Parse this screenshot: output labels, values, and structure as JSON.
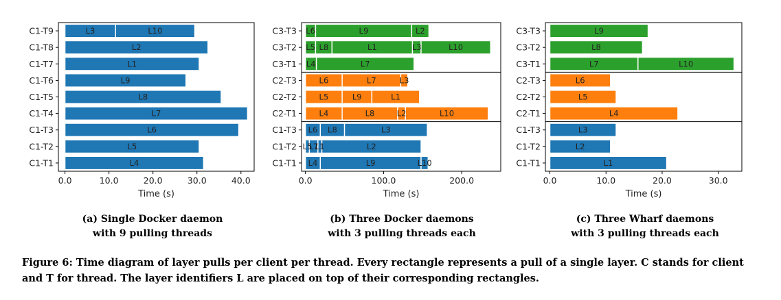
{
  "chart_data": [
    {
      "type": "bar",
      "orientation": "horizontal-gantt",
      "xlabel": "Time (s)",
      "xlim": [
        -1.5,
        43.0
      ],
      "xticks": [
        0,
        10,
        20,
        30,
        40
      ],
      "xtick_labels": [
        "0.0",
        "10.0",
        "20.0",
        "30.0",
        "40.0"
      ],
      "grid": false,
      "color": "#1f77b4",
      "rows": [
        "C1-T1",
        "C1-T2",
        "C1-T3",
        "C1-T4",
        "C1-T5",
        "C1-T6",
        "C1-T7",
        "C1-T8",
        "C1-T9"
      ],
      "group_separators_after": [],
      "segments": [
        {
          "row": "C1-T9",
          "layer": "L3",
          "start": 0,
          "end": 11.5
        },
        {
          "row": "C1-T9",
          "layer": "L10",
          "start": 11.5,
          "end": 29.5
        },
        {
          "row": "C1-T8",
          "layer": "L2",
          "start": 0,
          "end": 32.5
        },
        {
          "row": "C1-T7",
          "layer": "L1",
          "start": 0,
          "end": 30.5
        },
        {
          "row": "C1-T6",
          "layer": "L9",
          "start": 0,
          "end": 27.5
        },
        {
          "row": "C1-T5",
          "layer": "L8",
          "start": 0,
          "end": 35.5
        },
        {
          "row": "C1-T4",
          "layer": "L7",
          "start": 0,
          "end": 41.5
        },
        {
          "row": "C1-T3",
          "layer": "L6",
          "start": 0,
          "end": 39.5
        },
        {
          "row": "C1-T2",
          "layer": "L5",
          "start": 0,
          "end": 30.5
        },
        {
          "row": "C1-T1",
          "layer": "L4",
          "start": 0,
          "end": 31.5
        }
      ]
    },
    {
      "type": "bar",
      "orientation": "horizontal-gantt",
      "xlabel": "Time (s)",
      "xlim": [
        -5,
        250
      ],
      "xticks": [
        0,
        100,
        200
      ],
      "xtick_labels": [
        "0.0",
        "100.0",
        "200.0"
      ],
      "grid": false,
      "rows": [
        "C1-T1",
        "C1-T2",
        "C1-T3",
        "C2-T1",
        "C2-T2",
        "C2-T3",
        "C3-T1",
        "C3-T2",
        "C3-T3"
      ],
      "group_separators_after": [
        "C1-T3",
        "C2-T3"
      ],
      "segments": [
        {
          "row": "C3-T3",
          "layer": "L6",
          "start": 0,
          "end": 13,
          "color": "#2ca02c"
        },
        {
          "row": "C3-T3",
          "layer": "L9",
          "start": 13,
          "end": 136,
          "color": "#2ca02c"
        },
        {
          "row": "C3-T3",
          "layer": "L2",
          "start": 136,
          "end": 158,
          "color": "#2ca02c"
        },
        {
          "row": "C3-T2",
          "layer": "L5",
          "start": 0,
          "end": 13,
          "color": "#2ca02c"
        },
        {
          "row": "C3-T2",
          "layer": "L8",
          "start": 13,
          "end": 34,
          "color": "#2ca02c"
        },
        {
          "row": "C3-T2",
          "layer": "L1",
          "start": 34,
          "end": 137,
          "color": "#2ca02c"
        },
        {
          "row": "C3-T2",
          "layer": "L3",
          "start": 137,
          "end": 148,
          "color": "#2ca02c"
        },
        {
          "row": "C3-T2",
          "layer": "L10",
          "start": 148,
          "end": 237,
          "color": "#2ca02c"
        },
        {
          "row": "C3-T1",
          "layer": "L4",
          "start": 0,
          "end": 14,
          "color": "#2ca02c"
        },
        {
          "row": "C3-T1",
          "layer": "L7",
          "start": 14,
          "end": 139,
          "color": "#2ca02c"
        },
        {
          "row": "C2-T3",
          "layer": "L6",
          "start": 0,
          "end": 47,
          "color": "#ff7f0e"
        },
        {
          "row": "C2-T3",
          "layer": "L7",
          "start": 47,
          "end": 122,
          "color": "#ff7f0e"
        },
        {
          "row": "C2-T3",
          "layer": "L3",
          "start": 122,
          "end": 131,
          "color": "#ff7f0e"
        },
        {
          "row": "C2-T2",
          "layer": "L5",
          "start": 0,
          "end": 47,
          "color": "#ff7f0e"
        },
        {
          "row": "C2-T2",
          "layer": "L9",
          "start": 47,
          "end": 85,
          "color": "#ff7f0e"
        },
        {
          "row": "C2-T2",
          "layer": "L1",
          "start": 85,
          "end": 146,
          "color": "#ff7f0e"
        },
        {
          "row": "C2-T1",
          "layer": "L4",
          "start": 0,
          "end": 47,
          "color": "#ff7f0e"
        },
        {
          "row": "C2-T1",
          "layer": "L8",
          "start": 47,
          "end": 118,
          "color": "#ff7f0e"
        },
        {
          "row": "C2-T1",
          "layer": "L2",
          "start": 118,
          "end": 128,
          "color": "#ff7f0e"
        },
        {
          "row": "C2-T1",
          "layer": "L10",
          "start": 128,
          "end": 234,
          "color": "#ff7f0e"
        },
        {
          "row": "C1-T3",
          "layer": "L6",
          "start": 0,
          "end": 19,
          "color": "#1f77b4"
        },
        {
          "row": "C1-T3",
          "layer": "L8",
          "start": 19,
          "end": 50,
          "color": "#1f77b4"
        },
        {
          "row": "C1-T3",
          "layer": "L3",
          "start": 50,
          "end": 156,
          "color": "#1f77b4"
        },
        {
          "row": "C1-T2",
          "layer": "L5",
          "start": 0,
          "end": 5,
          "color": "#1f77b4"
        },
        {
          "row": "C1-T2",
          "layer": "L7",
          "start": 5,
          "end": 16,
          "color": "#1f77b4"
        },
        {
          "row": "C1-T2",
          "layer": "L1",
          "start": 16,
          "end": 21,
          "color": "#1f77b4"
        },
        {
          "row": "C1-T2",
          "layer": "L2",
          "start": 21,
          "end": 148,
          "color": "#1f77b4"
        },
        {
          "row": "C1-T1",
          "layer": "L4",
          "start": 0,
          "end": 19,
          "color": "#1f77b4"
        },
        {
          "row": "C1-T1",
          "layer": "L9",
          "start": 19,
          "end": 148,
          "color": "#1f77b4"
        },
        {
          "row": "C1-T1",
          "layer": "L10",
          "start": 148,
          "end": 157,
          "color": "#1f77b4"
        }
      ]
    },
    {
      "type": "bar",
      "orientation": "horizontal-gantt",
      "xlabel": "Time (s)",
      "xlim": [
        -0.8,
        34.2
      ],
      "xticks": [
        0,
        10,
        20,
        30
      ],
      "xtick_labels": [
        "0.0",
        "10.0",
        "20.0",
        "30.0"
      ],
      "grid": false,
      "rows": [
        "C1-T1",
        "C1-T2",
        "C1-T3",
        "C2-T1",
        "C2-T2",
        "C2-T3",
        "C3-T1",
        "C3-T2",
        "C3-T3"
      ],
      "group_separators_after": [
        "C1-T3",
        "C2-T3"
      ],
      "segments": [
        {
          "row": "C3-T3",
          "layer": "L9",
          "start": 0,
          "end": 17.5,
          "color": "#2ca02c"
        },
        {
          "row": "C3-T2",
          "layer": "L8",
          "start": 0,
          "end": 16.5,
          "color": "#2ca02c"
        },
        {
          "row": "C3-T1",
          "layer": "L7",
          "start": 0,
          "end": 15.7,
          "color": "#2ca02c"
        },
        {
          "row": "C3-T1",
          "layer": "L10",
          "start": 15.7,
          "end": 32.8,
          "color": "#2ca02c"
        },
        {
          "row": "C2-T3",
          "layer": "L6",
          "start": 0,
          "end": 10.8,
          "color": "#ff7f0e"
        },
        {
          "row": "C2-T2",
          "layer": "L5",
          "start": 0,
          "end": 11.8,
          "color": "#ff7f0e"
        },
        {
          "row": "C2-T1",
          "layer": "L4",
          "start": 0,
          "end": 22.8,
          "color": "#ff7f0e"
        },
        {
          "row": "C1-T3",
          "layer": "L3",
          "start": 0,
          "end": 11.8,
          "color": "#1f77b4"
        },
        {
          "row": "C1-T2",
          "layer": "L2",
          "start": 0,
          "end": 10.8,
          "color": "#1f77b4"
        },
        {
          "row": "C1-T1",
          "layer": "L1",
          "start": 0,
          "end": 20.8,
          "color": "#1f77b4"
        }
      ]
    }
  ],
  "subcaptions": [
    {
      "line1": "(a) Single Docker daemon",
      "line2": "with 9 pulling threads"
    },
    {
      "line1": "(b) Three Docker daemons",
      "line2": "with 3 pulling threads each"
    },
    {
      "line1": "(c) Three Wharf daemons",
      "line2": "with 3 pulling threads each"
    }
  ],
  "figure_caption": "Figure 6: Time diagram of layer pulls per client per thread. Every rectangle represents a pull of a single layer. C stands for client and T for thread. The layer identifiers L are placed on top of their corresponding rectangles."
}
